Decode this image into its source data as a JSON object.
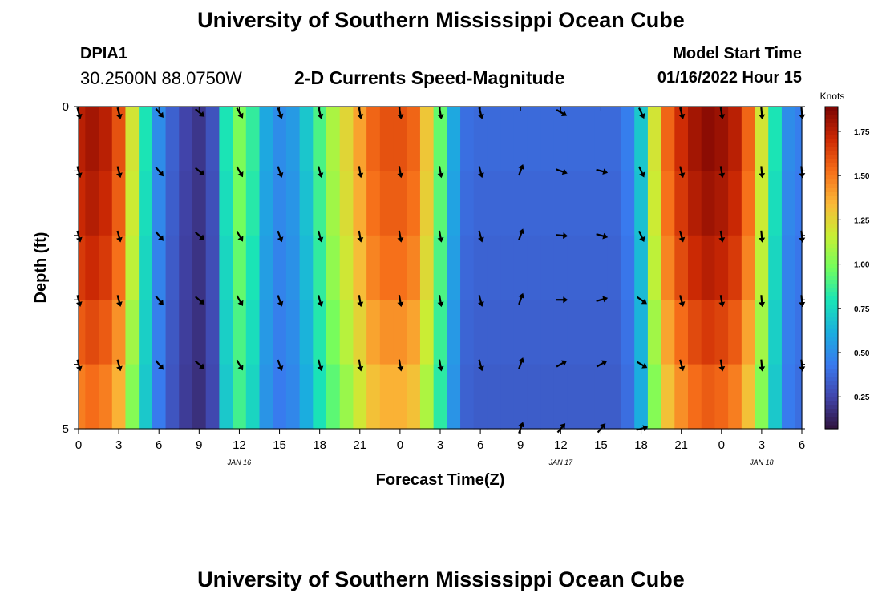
{
  "page": {
    "title_top": "University of Southern Mississippi Ocean Cube",
    "title_bottom": "University of Southern Mississippi Ocean Cube",
    "station_id": "DPIA1",
    "coordinates": "30.2500N  88.0750W",
    "subtitle": "2-D Currents Speed-Magnitude",
    "model_start_label": "Model Start Time",
    "model_start_value": "01/16/2022 Hour 15"
  },
  "chart_data": {
    "type": "heatmap",
    "title": "2-D Currents Speed-Magnitude",
    "xlabel": "Forecast Time(Z)",
    "ylabel": "Depth (ft)",
    "xlim": [
      0,
      54
    ],
    "ylim": [
      0,
      5
    ],
    "x_tick_values": [
      0,
      3,
      6,
      9,
      12,
      15,
      18,
      21,
      24,
      27,
      30,
      33,
      36,
      39,
      42,
      45,
      48,
      51,
      54
    ],
    "x_tick_labels": [
      "0",
      "3",
      "6",
      "9",
      "12",
      "15",
      "18",
      "21",
      "0",
      "3",
      "6",
      "9",
      "12",
      "15",
      "18",
      "21",
      "0",
      "3",
      "6"
    ],
    "y_tick_values": [
      0,
      1,
      2,
      3,
      4,
      5
    ],
    "y_tick_labels": [
      "0",
      "",
      "",
      "",
      "",
      "5"
    ],
    "date_labels": [
      {
        "x": 12,
        "text": "JAN 16"
      },
      {
        "x": 36,
        "text": "JAN 17"
      },
      {
        "x": 51,
        "text": "JAN 18"
      }
    ],
    "colorbar": {
      "title": "Knots",
      "min": 0.07,
      "max": 1.89,
      "ticks": [
        0.25,
        0.5,
        0.75,
        1.0,
        1.25,
        1.5,
        1.75
      ],
      "tick_labels": [
        "0.25",
        "0.50",
        "0.75",
        "1.00",
        "1.25",
        "1.50",
        "1.75"
      ]
    },
    "speed_profile": {
      "hours": [
        0,
        1,
        2,
        3,
        4,
        5,
        6,
        7,
        8,
        9,
        10,
        11,
        12,
        13,
        14,
        15,
        16,
        17,
        18,
        19,
        20,
        21,
        22,
        23,
        24,
        25,
        26,
        27,
        28,
        29,
        30,
        31,
        32,
        33,
        34,
        35,
        36,
        37,
        38,
        39,
        40,
        41,
        42,
        43,
        44,
        45,
        46,
        47,
        48,
        49,
        50,
        51,
        52,
        53,
        54
      ],
      "knots": [
        1.75,
        1.8,
        1.75,
        1.6,
        1.2,
        0.8,
        0.5,
        0.35,
        0.25,
        0.2,
        0.3,
        0.8,
        1.0,
        0.85,
        0.6,
        0.5,
        0.55,
        0.7,
        0.9,
        1.1,
        1.25,
        1.4,
        1.55,
        1.6,
        1.6,
        1.55,
        1.3,
        0.95,
        0.6,
        0.4,
        0.38,
        0.38,
        0.38,
        0.38,
        0.38,
        0.38,
        0.38,
        0.38,
        0.38,
        0.38,
        0.38,
        0.45,
        0.7,
        1.2,
        1.55,
        1.7,
        1.8,
        1.85,
        1.82,
        1.75,
        1.55,
        1.2,
        0.8,
        0.5,
        0.45
      ]
    },
    "depth_rows": [
      0.5,
      1.5,
      2.5,
      3.5,
      4.5
    ],
    "depth_row_factor": [
      1.0,
      0.98,
      0.95,
      0.9,
      0.85
    ],
    "vector_hours": [
      0,
      3,
      6,
      9,
      12,
      15,
      18,
      21,
      24,
      27,
      30,
      33,
      36,
      39,
      42,
      45,
      48,
      51,
      54
    ],
    "vector_depths": [
      0,
      1,
      2,
      3,
      4,
      5
    ],
    "vector_directions_deg": [
      [
        165,
        165,
        140,
        130,
        150,
        160,
        165,
        170,
        170,
        170,
        165,
        null,
        120,
        null,
        155,
        165,
        170,
        175,
        175
      ],
      [
        165,
        165,
        140,
        130,
        150,
        160,
        165,
        170,
        170,
        170,
        165,
        20,
        110,
        105,
        155,
        165,
        170,
        175,
        175
      ],
      [
        165,
        165,
        140,
        130,
        150,
        160,
        165,
        170,
        170,
        170,
        165,
        20,
        95,
        105,
        155,
        165,
        170,
        175,
        175
      ],
      [
        165,
        165,
        140,
        130,
        150,
        160,
        165,
        170,
        170,
        170,
        165,
        20,
        90,
        75,
        125,
        165,
        170,
        175,
        175
      ],
      [
        165,
        165,
        140,
        130,
        150,
        160,
        165,
        170,
        170,
        170,
        165,
        20,
        60,
        60,
        120,
        165,
        170,
        175,
        175
      ],
      [
        null,
        null,
        null,
        null,
        null,
        null,
        null,
        null,
        null,
        null,
        null,
        20,
        40,
        40,
        75,
        null,
        null,
        null,
        null
      ]
    ]
  }
}
